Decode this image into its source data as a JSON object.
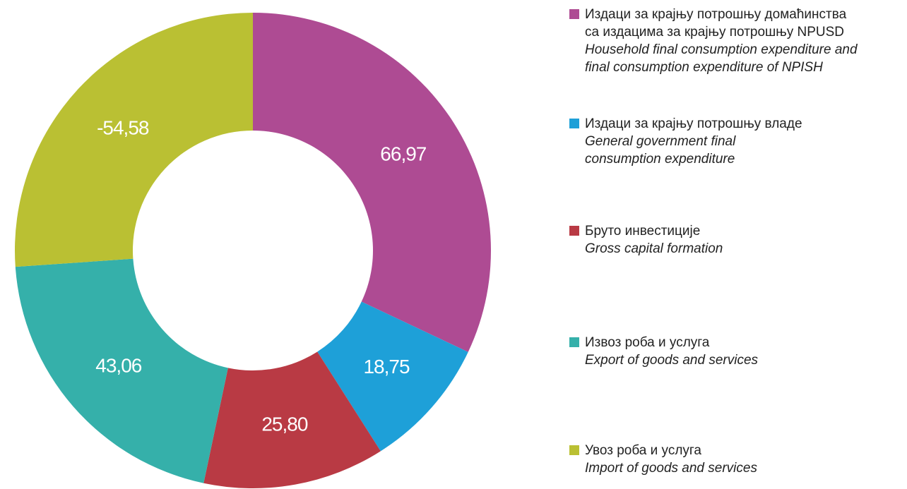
{
  "chart_data": {
    "type": "donut",
    "categories": [
      "Издаци за крајњу потрошњу домаћинства\nса издацима за крајњу потрошњу NPUSD",
      "Издаци за крајњу потрошњу владе",
      "Бруто инвестиције",
      "Извоз роба и услуга",
      "Увоз роба и услуга"
    ],
    "categories_en": [
      "Household final consumption expenditure and\nfinal consumption expenditure of NPISH",
      "General government final\nconsumption expenditure",
      "Gross capital formation",
      "Export of goods and services",
      "Import of goods and services"
    ],
    "values": [
      66.97,
      18.75,
      25.8,
      43.06,
      -54.58
    ],
    "value_labels": [
      "66,97",
      "18,75",
      "25,80",
      "43,06",
      "-54,58"
    ],
    "colors": [
      "#ae4b93",
      "#1ea0d8",
      "#b93a44",
      "#35b0aa",
      "#bac033"
    ],
    "legend": "right"
  }
}
